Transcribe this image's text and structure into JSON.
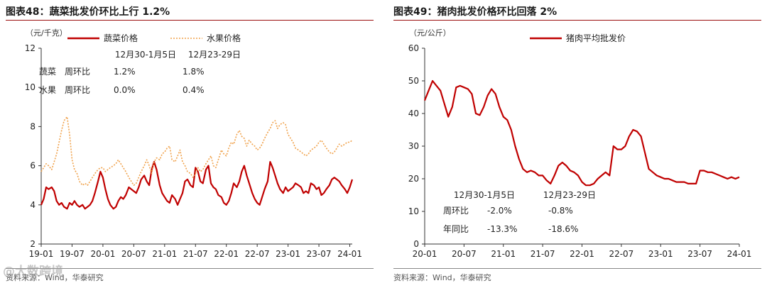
{
  "watermark": "@大数跨境",
  "chart_data": [
    {
      "type": "line",
      "title": "图表48：蔬菜批发价环比上行 1.2%",
      "unit": "（元/千克）",
      "source": "资料来源：Wind，华泰研究",
      "ylim": [
        2,
        12
      ],
      "yticks": [
        2,
        4,
        6,
        8,
        10,
        12
      ],
      "xticks": [
        "19-01",
        "19-07",
        "20-01",
        "20-07",
        "21-01",
        "21-07",
        "22-01",
        "22-07",
        "23-01",
        "23-07",
        "24-01"
      ],
      "grid": false,
      "legend_position": "top",
      "series": [
        {
          "name": "蔬菜价格",
          "color": "#c00000",
          "style": "solid",
          "x": [
            2019.0,
            2019.04,
            2019.08,
            2019.12,
            2019.17,
            2019.21,
            2019.25,
            2019.29,
            2019.33,
            2019.37,
            2019.42,
            2019.46,
            2019.5,
            2019.54,
            2019.58,
            2019.62,
            2019.67,
            2019.71,
            2019.75,
            2019.79,
            2019.83,
            2019.87,
            2019.92,
            2019.96,
            2020.0,
            2020.04,
            2020.08,
            2020.12,
            2020.17,
            2020.21,
            2020.25,
            2020.29,
            2020.33,
            2020.37,
            2020.42,
            2020.46,
            2020.5,
            2020.54,
            2020.58,
            2020.62,
            2020.67,
            2020.71,
            2020.75,
            2020.79,
            2020.83,
            2020.87,
            2020.92,
            2020.96,
            2021.0,
            2021.04,
            2021.08,
            2021.12,
            2021.17,
            2021.21,
            2021.25,
            2021.29,
            2021.33,
            2021.37,
            2021.42,
            2021.46,
            2021.5,
            2021.54,
            2021.58,
            2021.62,
            2021.67,
            2021.71,
            2021.75,
            2021.79,
            2021.83,
            2021.87,
            2021.92,
            2021.96,
            2022.0,
            2022.04,
            2022.08,
            2022.12,
            2022.17,
            2022.21,
            2022.25,
            2022.29,
            2022.33,
            2022.37,
            2022.42,
            2022.46,
            2022.5,
            2022.54,
            2022.58,
            2022.62,
            2022.67,
            2022.71,
            2022.75,
            2022.79,
            2022.83,
            2022.87,
            2022.92,
            2022.96,
            2023.0,
            2023.04,
            2023.08,
            2023.12,
            2023.17,
            2023.21,
            2023.25,
            2023.29,
            2023.33,
            2023.37,
            2023.42,
            2023.46,
            2023.5,
            2023.54,
            2023.58,
            2023.62,
            2023.67,
            2023.71,
            2023.75,
            2023.79,
            2023.83,
            2023.87,
            2023.92,
            2023.96,
            2024.0,
            2024.04
          ],
          "y": [
            4.0,
            4.3,
            4.9,
            4.8,
            4.9,
            4.7,
            4.2,
            4.0,
            4.1,
            3.9,
            3.8,
            4.1,
            4.0,
            4.2,
            4.0,
            3.9,
            4.0,
            3.8,
            3.9,
            4.0,
            4.2,
            4.6,
            5.2,
            5.7,
            5.4,
            4.8,
            4.3,
            4.0,
            3.8,
            3.9,
            4.2,
            4.4,
            4.3,
            4.5,
            4.9,
            4.8,
            4.7,
            4.6,
            4.9,
            5.3,
            5.5,
            5.2,
            5.0,
            5.8,
            6.2,
            5.8,
            5.0,
            4.6,
            4.4,
            4.2,
            4.1,
            4.5,
            4.3,
            4.0,
            4.3,
            4.6,
            5.2,
            5.3,
            5.0,
            4.9,
            5.9,
            5.7,
            5.2,
            5.1,
            5.8,
            6.0,
            5.1,
            4.9,
            4.8,
            4.5,
            4.4,
            4.1,
            4.0,
            4.2,
            4.6,
            5.1,
            4.9,
            5.2,
            5.7,
            6.0,
            5.5,
            5.1,
            4.6,
            4.3,
            4.1,
            4.0,
            4.4,
            4.8,
            5.2,
            6.2,
            5.9,
            5.5,
            5.1,
            4.8,
            4.6,
            4.9,
            4.7,
            4.8,
            4.9,
            5.1,
            5.0,
            4.9,
            4.6,
            4.7,
            4.6,
            5.1,
            5.0,
            4.8,
            4.9,
            4.5,
            4.6,
            4.8,
            5.0,
            5.3,
            5.4,
            5.3,
            5.2,
            5.0,
            4.8,
            4.6,
            4.9,
            5.3
          ]
        },
        {
          "name": "水果价格",
          "color": "#f0a14a",
          "style": "dotted",
          "x": [
            2019.0,
            2019.04,
            2019.08,
            2019.12,
            2019.17,
            2019.21,
            2019.25,
            2019.29,
            2019.33,
            2019.37,
            2019.42,
            2019.46,
            2019.5,
            2019.54,
            2019.58,
            2019.62,
            2019.67,
            2019.71,
            2019.75,
            2019.79,
            2019.83,
            2019.87,
            2019.92,
            2019.96,
            2020.0,
            2020.04,
            2020.08,
            2020.12,
            2020.17,
            2020.21,
            2020.25,
            2020.29,
            2020.33,
            2020.37,
            2020.42,
            2020.46,
            2020.5,
            2020.54,
            2020.58,
            2020.62,
            2020.67,
            2020.71,
            2020.75,
            2020.79,
            2020.83,
            2020.87,
            2020.92,
            2020.96,
            2021.0,
            2021.04,
            2021.08,
            2021.12,
            2021.17,
            2021.21,
            2021.25,
            2021.29,
            2021.33,
            2021.37,
            2021.42,
            2021.46,
            2021.5,
            2021.54,
            2021.58,
            2021.62,
            2021.67,
            2021.71,
            2021.75,
            2021.79,
            2021.83,
            2021.87,
            2021.92,
            2021.96,
            2022.0,
            2022.04,
            2022.08,
            2022.12,
            2022.17,
            2022.21,
            2022.25,
            2022.29,
            2022.33,
            2022.37,
            2022.42,
            2022.46,
            2022.5,
            2022.54,
            2022.58,
            2022.62,
            2022.67,
            2022.71,
            2022.75,
            2022.79,
            2022.83,
            2022.87,
            2022.92,
            2022.96,
            2023.0,
            2023.04,
            2023.08,
            2023.12,
            2023.17,
            2023.21,
            2023.25,
            2023.29,
            2023.33,
            2023.37,
            2023.42,
            2023.46,
            2023.5,
            2023.54,
            2023.58,
            2023.62,
            2023.67,
            2023.71,
            2023.75,
            2023.79,
            2023.83,
            2023.87,
            2023.92,
            2023.96,
            2024.0,
            2024.04
          ],
          "y": [
            5.7,
            5.9,
            6.1,
            6.0,
            5.8,
            6.2,
            6.6,
            7.2,
            7.8,
            8.3,
            8.5,
            7.6,
            6.3,
            5.8,
            5.6,
            5.2,
            5.0,
            5.1,
            5.0,
            5.2,
            5.4,
            5.6,
            5.8,
            5.9,
            5.9,
            5.7,
            5.8,
            5.9,
            6.0,
            6.1,
            6.3,
            6.1,
            5.9,
            5.7,
            5.4,
            5.2,
            5.0,
            5.1,
            5.4,
            5.7,
            6.0,
            6.3,
            6.0,
            5.6,
            6.2,
            6.4,
            6.3,
            6.6,
            6.7,
            6.9,
            7.0,
            6.3,
            6.2,
            6.5,
            6.8,
            6.2,
            6.0,
            5.7,
            5.6,
            5.4,
            5.6,
            5.9,
            5.7,
            5.8,
            6.1,
            6.3,
            6.5,
            6.0,
            5.9,
            6.3,
            6.8,
            6.6,
            6.5,
            6.9,
            7.2,
            7.1,
            7.6,
            7.8,
            7.5,
            7.4,
            7.0,
            7.3,
            7.1,
            7.0,
            6.8,
            6.9,
            7.1,
            7.4,
            7.7,
            7.9,
            8.2,
            8.3,
            7.9,
            8.1,
            8.2,
            8.1,
            7.6,
            7.4,
            7.2,
            6.9,
            6.8,
            6.7,
            6.6,
            6.5,
            6.6,
            6.8,
            6.9,
            7.0,
            7.2,
            7.3,
            7.1,
            6.9,
            6.7,
            6.6,
            6.7,
            6.9,
            7.1,
            7.0,
            7.1,
            7.2,
            7.2,
            7.3
          ]
        }
      ],
      "table": {
        "headers": [
          "12月30-1月5日",
          "12月23-29日"
        ],
        "rows": [
          {
            "label": "蔬菜　周环比",
            "values": [
              "1.2%",
              "1.8%"
            ]
          },
          {
            "label": "水果　周环比",
            "values": [
              "0.0%",
              "0.4%"
            ]
          }
        ]
      }
    },
    {
      "type": "line",
      "title": "图表49：猪肉批发价格环比回落 2%",
      "unit": "（元/公斤）",
      "source": "资料来源：Wind，华泰研究",
      "ylim": [
        0,
        60
      ],
      "yticks": [
        0,
        10,
        20,
        30,
        40,
        50,
        60
      ],
      "xticks": [
        "20-01",
        "20-07",
        "21-01",
        "21-07",
        "22-01",
        "22-07",
        "23-01",
        "23-07",
        "24-01"
      ],
      "grid": false,
      "legend_position": "top",
      "series": [
        {
          "name": "猪肉平均批发价",
          "color": "#c00000",
          "style": "solid",
          "x": [
            2020.0,
            2020.05,
            2020.1,
            2020.15,
            2020.2,
            2020.25,
            2020.3,
            2020.35,
            2020.4,
            2020.45,
            2020.5,
            2020.55,
            2020.6,
            2020.65,
            2020.7,
            2020.75,
            2020.8,
            2020.85,
            2020.9,
            2020.95,
            2021.0,
            2021.05,
            2021.1,
            2021.15,
            2021.2,
            2021.25,
            2021.3,
            2021.35,
            2021.4,
            2021.45,
            2021.5,
            2021.55,
            2021.6,
            2021.65,
            2021.7,
            2021.75,
            2021.8,
            2021.85,
            2021.9,
            2021.95,
            2022.0,
            2022.05,
            2022.1,
            2022.15,
            2022.2,
            2022.25,
            2022.3,
            2022.35,
            2022.4,
            2022.45,
            2022.5,
            2022.55,
            2022.6,
            2022.65,
            2022.7,
            2022.75,
            2022.8,
            2022.85,
            2022.9,
            2022.95,
            2023.0,
            2023.05,
            2023.1,
            2023.15,
            2023.2,
            2023.25,
            2023.3,
            2023.35,
            2023.4,
            2023.45,
            2023.5,
            2023.55,
            2023.6,
            2023.65,
            2023.7,
            2023.75,
            2023.8,
            2023.85,
            2023.9,
            2023.95,
            2024.0
          ],
          "y": [
            44.0,
            47.0,
            50.0,
            48.5,
            47.0,
            43.0,
            39.0,
            42.0,
            48.0,
            48.5,
            48.0,
            47.5,
            46.0,
            40.0,
            39.5,
            42.0,
            45.5,
            47.5,
            46.0,
            42.0,
            39.0,
            38.0,
            35.0,
            30.0,
            26.0,
            23.0,
            22.0,
            22.5,
            22.0,
            21.0,
            21.0,
            19.5,
            18.5,
            21.0,
            24.0,
            25.0,
            24.0,
            22.5,
            22.0,
            21.0,
            19.0,
            18.0,
            18.0,
            18.5,
            20.0,
            21.0,
            22.0,
            21.0,
            30.0,
            29.0,
            29.0,
            30.0,
            33.0,
            35.0,
            34.5,
            33.0,
            28.0,
            23.0,
            22.0,
            21.0,
            20.5,
            20.0,
            20.0,
            19.5,
            19.0,
            19.0,
            19.0,
            18.5,
            18.5,
            18.5,
            22.5,
            22.5,
            22.0,
            22.0,
            21.5,
            21.0,
            20.5,
            20.0,
            20.5,
            20.0,
            20.5
          ]
        }
      ],
      "table": {
        "headers": [
          "12月30-1月5日",
          "12月23-29日"
        ],
        "rows": [
          {
            "label": "周环比",
            "values": [
              "-2.0%",
              "-0.8%"
            ]
          },
          {
            "label": "年同比",
            "values": [
              "-13.3%",
              "-18.6%"
            ]
          }
        ]
      }
    }
  ]
}
